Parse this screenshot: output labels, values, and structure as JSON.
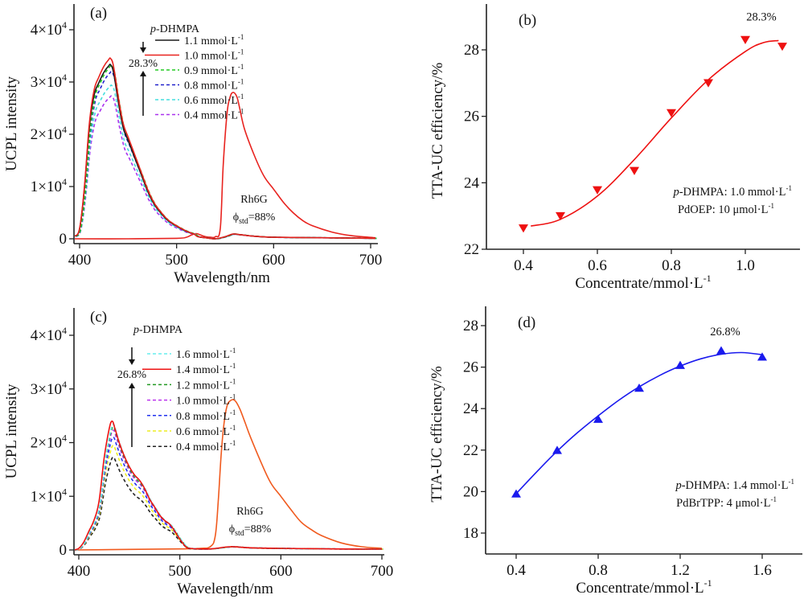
{
  "chart_data": [
    {
      "id": "a",
      "type": "line",
      "panel_label": "(a)",
      "xlabel": "Wavelength/nm",
      "ylabel": "UCPL intensity",
      "xlim": [
        395,
        705
      ],
      "ylim": [
        0,
        44000
      ],
      "xticks": [
        400,
        500,
        600,
        700
      ],
      "xtick_labels": [
        "400",
        "500",
        "600",
        "700"
      ],
      "yticks": [
        0,
        10000,
        20000,
        30000,
        40000
      ],
      "ytick_labels": [
        {
          "m": "0",
          "e": ""
        },
        {
          "m": "1×10",
          "e": "4"
        },
        {
          "m": "2×10",
          "e": "4"
        },
        {
          "m": "3×10",
          "e": "4"
        },
        {
          "m": "4×10",
          "e": "4"
        }
      ],
      "legend_title": "p-DHMPA",
      "legend_title_italic": "p",
      "legend_title_rest": "-DHMPA",
      "annotation_efficiency": "28.3%",
      "rh6g_label": "Rh6G",
      "rh6g_phi": {
        "symbol": "ϕ",
        "sub": "std",
        "value": "=88%"
      },
      "series": [
        {
          "name": "1.1 mmol·L",
          "sup": "-1",
          "color": "#1a1a1a",
          "dash": false,
          "scale": 0.965,
          "legend": true
        },
        {
          "name": "1.0 mmol·L",
          "sup": "-1",
          "color": "#e8231f",
          "dash": false,
          "scale": 1.0,
          "legend": true
        },
        {
          "name": "0.9 mmol·L",
          "sup": "-1",
          "color": "#22cc22",
          "dash": true,
          "scale": 0.96,
          "legend": true
        },
        {
          "name": "0.8 mmol·L",
          "sup": "-1",
          "color": "#2222cc",
          "dash": true,
          "scale": 0.925,
          "legend": true
        },
        {
          "name": "0.6 mmol·L",
          "sup": "-1",
          "color": "#44dddd",
          "dash": true,
          "scale": 0.85,
          "legend": true
        },
        {
          "name": "0.4 mmol·L",
          "sup": "-1",
          "color": "#aa33ee",
          "dash": true,
          "scale": 0.79,
          "legend": true
        }
      ],
      "ucpl_profile": {
        "x": [
          395,
          400,
          405,
          410,
          415,
          420,
          425,
          430,
          432,
          435,
          440,
          445,
          450,
          455,
          460,
          465,
          470,
          475,
          480,
          490,
          500,
          510,
          518,
          522,
          530,
          540,
          550,
          558,
          565,
          580,
          600,
          650,
          705
        ],
        "y": [
          500,
          2000,
          10000,
          22000,
          28500,
          31000,
          33000,
          34300,
          34500,
          33000,
          27000,
          22000,
          19500,
          17000,
          14500,
          12000,
          9500,
          7500,
          6000,
          3800,
          2500,
          1500,
          900,
          400,
          200,
          0,
          400,
          900,
          800,
          500,
          300,
          200,
          100
        ]
      },
      "rh6g": {
        "color": "#e8231f",
        "x": [
          395,
          450,
          500,
          510,
          515,
          520,
          525,
          530,
          535,
          540,
          545,
          548,
          552,
          555,
          558,
          562,
          565,
          570,
          580,
          590,
          600,
          610,
          620,
          630,
          640,
          660,
          680,
          705
        ],
        "y": [
          0,
          0,
          100,
          300,
          700,
          1000,
          700,
          400,
          300,
          400,
          2000,
          14000,
          24000,
          27000,
          28000,
          27200,
          25000,
          21000,
          16000,
          12000,
          9500,
          7000,
          5000,
          3500,
          2500,
          1300,
          600,
          200
        ]
      }
    },
    {
      "id": "b",
      "type": "scatter",
      "panel_label": "(b)",
      "xlabel": "Concentrate/mmol·L",
      "xlabel_sup": "-1",
      "ylabel": "TTA-UC efficiency/%",
      "xlim": [
        0.31,
        1.16
      ],
      "ylim": [
        22,
        29.5
      ],
      "xticks": [
        0.4,
        0.6,
        0.8,
        1.0
      ],
      "xtick_labels": [
        "0.4",
        "0.6",
        "0.8",
        "1.0"
      ],
      "yticks": [
        22,
        24,
        26,
        28
      ],
      "ytick_labels": [
        "22",
        "24",
        "26",
        "28"
      ],
      "marker": "triangle-down",
      "color": "#ee1111",
      "x": [
        0.4,
        0.5,
        0.6,
        0.7,
        0.8,
        0.9,
        1.0,
        1.1
      ],
      "y": [
        22.63,
        23.0,
        23.78,
        24.36,
        26.1,
        27.0,
        28.3,
        28.1
      ],
      "fit_x": [
        0.42,
        0.5,
        0.6,
        0.7,
        0.8,
        0.9,
        1.0,
        1.05,
        1.09
      ],
      "fit_y": [
        22.7,
        22.9,
        23.6,
        24.7,
        25.95,
        27.1,
        27.95,
        28.22,
        28.28
      ],
      "peak_label": "28.3%",
      "note_line1_italic": "p",
      "note_line1": "-DHMPA: 1.0 mmol·L",
      "note_line1_sup": "-1",
      "note_line2": "PdOEP: 10 μmol·L",
      "note_line2_sup": "-1"
    },
    {
      "id": "c",
      "type": "line",
      "panel_label": "(c)",
      "xlabel": "Wavelength/nm",
      "ylabel": "UCPL intensity",
      "xlim": [
        395,
        700
      ],
      "ylim": [
        0,
        44000
      ],
      "xticks": [
        400,
        500,
        600,
        700
      ],
      "xtick_labels": [
        "400",
        "500",
        "600",
        "700"
      ],
      "yticks": [
        0,
        10000,
        20000,
        30000,
        40000
      ],
      "ytick_labels": [
        {
          "m": "0",
          "e": ""
        },
        {
          "m": "1×10",
          "e": "4"
        },
        {
          "m": "2×10",
          "e": "4"
        },
        {
          "m": "3×10",
          "e": "4"
        },
        {
          "m": "4×10",
          "e": "4"
        }
      ],
      "legend_title": "p-DHMPA",
      "legend_title_italic": "p",
      "legend_title_rest": "-DHMPA",
      "annotation_efficiency": "26.8%",
      "rh6g_label": "Rh6G",
      "rh6g_phi": {
        "symbol": "ϕ",
        "sub": "std",
        "value": "=88%"
      },
      "series": [
        {
          "name": "1.6 mmol·L",
          "sup": "-1",
          "color": "#66eeee",
          "dash": true,
          "scale": 0.975,
          "legend": true
        },
        {
          "name": "1.4 mmol·L",
          "sup": "-1",
          "color": "#ee1111",
          "dash": false,
          "scale": 1.0,
          "legend": true
        },
        {
          "name": "1.2 mmol·L",
          "sup": "-1",
          "color": "#229922",
          "dash": true,
          "scale": 0.955,
          "legend": true
        },
        {
          "name": "1.0 mmol·L",
          "sup": "-1",
          "color": "#bb33ee",
          "dash": true,
          "scale": 0.93,
          "legend": true
        },
        {
          "name": "0.8 mmol·L",
          "sup": "-1",
          "color": "#2233ee",
          "dash": true,
          "scale": 0.875,
          "legend": true
        },
        {
          "name": "0.6 mmol·L",
          "sup": "-1",
          "color": "#eeee22",
          "dash": true,
          "scale": 0.81,
          "legend": true
        },
        {
          "name": "0.4 mmol·L",
          "sup": "-1",
          "color": "#222222",
          "dash": true,
          "scale": 0.72,
          "legend": true
        }
      ],
      "ucpl_profile": {
        "x": [
          395,
          400,
          405,
          410,
          415,
          420,
          425,
          430,
          433,
          436,
          440,
          445,
          450,
          455,
          460,
          465,
          470,
          475,
          480,
          485,
          490,
          495,
          500,
          505,
          510,
          530,
          550,
          570,
          600,
          650,
          700
        ],
        "y": [
          0,
          300,
          1500,
          3500,
          5500,
          9000,
          17000,
          22500,
          24000,
          22500,
          20000,
          17500,
          15500,
          14000,
          13000,
          11500,
          9500,
          8000,
          6500,
          5500,
          4800,
          3500,
          2000,
          800,
          300,
          200,
          600,
          400,
          300,
          200,
          150
        ]
      },
      "rh6g": {
        "color": "#f05a1e",
        "x": [
          395,
          450,
          500,
          520,
          530,
          535,
          538,
          541,
          544,
          547,
          550,
          553,
          556,
          560,
          565,
          570,
          580,
          590,
          600,
          610,
          620,
          630,
          640,
          660,
          680,
          700
        ],
        "y": [
          0,
          100,
          200,
          300,
          600,
          2500,
          9000,
          18000,
          24000,
          27000,
          27800,
          28000,
          27500,
          26000,
          23500,
          21000,
          16500,
          12500,
          10000,
          7500,
          5200,
          3800,
          2700,
          1300,
          600,
          300
        ]
      }
    },
    {
      "id": "d",
      "type": "scatter",
      "panel_label": "(d)",
      "xlabel": "Concentrate/mmol·L",
      "xlabel_sup": "-1",
      "ylabel": "TTA-UC efficiency/%",
      "xlim": [
        0.25,
        1.8
      ],
      "ylim": [
        17,
        29
      ],
      "xticks": [
        0.4,
        0.8,
        1.2,
        1.6
      ],
      "xtick_labels": [
        "0.4",
        "0.8",
        "1.2",
        "1.6"
      ],
      "yticks": [
        18,
        20,
        22,
        24,
        26,
        28
      ],
      "ytick_labels": [
        "18",
        "20",
        "22",
        "24",
        "26",
        "28"
      ],
      "marker": "triangle-up",
      "color": "#1a1aee",
      "x": [
        0.4,
        0.6,
        0.8,
        1.0,
        1.2,
        1.4,
        1.6
      ],
      "y": [
        19.9,
        22.0,
        23.5,
        25.0,
        26.1,
        26.8,
        26.5
      ],
      "fit_x": [
        0.4,
        0.5,
        0.6,
        0.7,
        0.8,
        0.9,
        1.0,
        1.1,
        1.2,
        1.3,
        1.4,
        1.5,
        1.6
      ],
      "fit_y": [
        19.9,
        20.95,
        21.95,
        22.85,
        23.65,
        24.4,
        25.05,
        25.6,
        26.05,
        26.4,
        26.62,
        26.7,
        26.6
      ],
      "peak_label": "26.8%",
      "note_line1_italic": "p",
      "note_line1": "-DHMPA: 1.4 mmol·L",
      "note_line1_sup": "-1",
      "note_line2": "PdBrTPP: 4 μmol·L",
      "note_line2_sup": "-1"
    }
  ]
}
